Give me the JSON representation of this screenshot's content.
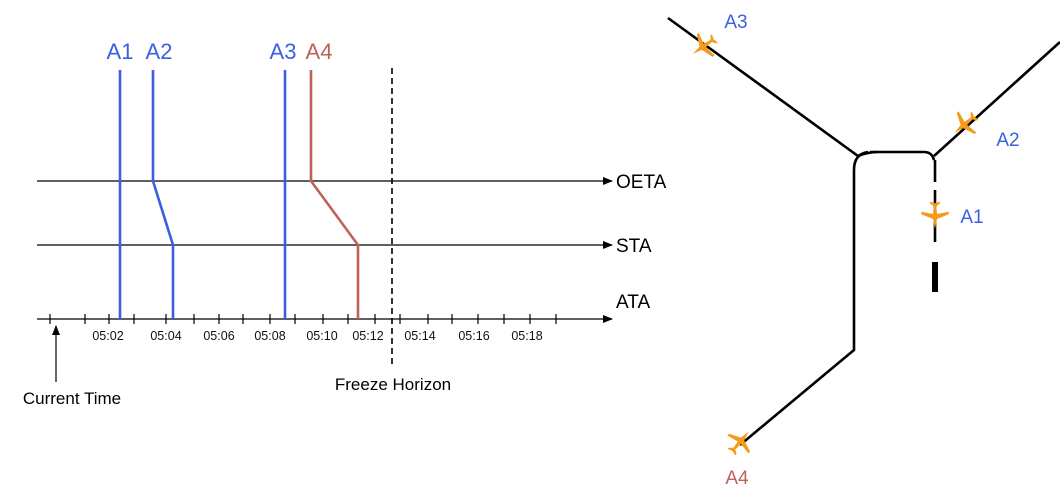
{
  "colors": {
    "blue": "#3a5fe0",
    "red": "#c0605a",
    "black": "#000000",
    "plane": "#f59a1b",
    "tick_text": "#111111"
  },
  "timeline": {
    "axes": [
      "OETA",
      "STA",
      "ATA"
    ],
    "ticks": [
      "05:02",
      "05:04",
      "05:06",
      "05:08",
      "05:10",
      "05:12",
      "05:14",
      "05:16",
      "05:18"
    ],
    "current_time_label": "Current Time",
    "freeze_horizon_label": "Freeze Horizon",
    "aircraft": [
      {
        "label": "A1",
        "color": "blue"
      },
      {
        "label": "A2",
        "color": "blue"
      },
      {
        "label": "A3",
        "color": "blue"
      },
      {
        "label": "A4",
        "color": "red"
      }
    ]
  },
  "airspace": {
    "aircraft": [
      {
        "label": "A3",
        "color": "blue",
        "icon": "airplane-icon"
      },
      {
        "label": "A2",
        "color": "blue",
        "icon": "airplane-icon"
      },
      {
        "label": "A1",
        "color": "blue",
        "icon": "airplane-icon"
      },
      {
        "label": "A4",
        "color": "red",
        "icon": "airplane-icon"
      }
    ]
  }
}
